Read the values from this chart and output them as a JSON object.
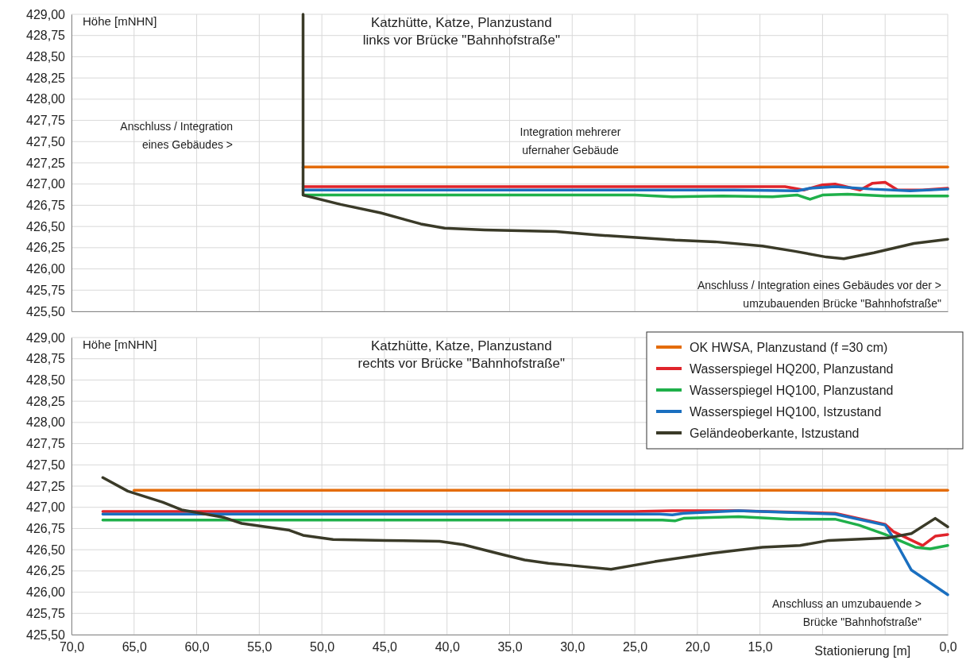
{
  "chart_data": [
    {
      "type": "line",
      "title": "Katzhütte,  Katze, Planzustand",
      "subtitle": "links vor Brücke \"Bahnhofstraße\"",
      "ylabel": "Höhe [mNHN]",
      "xlim": [
        70,
        0
      ],
      "ylim": [
        425.5,
        429
      ],
      "grid": true,
      "legend": false,
      "tick_labels": "y",
      "xticks": [
        {
          "value": 70,
          "label": null
        },
        {
          "value": 65,
          "label": null
        },
        {
          "value": 60,
          "label": null
        },
        {
          "value": 55,
          "label": null
        },
        {
          "value": 50,
          "label": null
        },
        {
          "value": 45,
          "label": null
        },
        {
          "value": 40,
          "label": null
        },
        {
          "value": 35,
          "label": null
        },
        {
          "value": 30,
          "label": null
        },
        {
          "value": 25,
          "label": null
        },
        {
          "value": 20,
          "label": null
        },
        {
          "value": 15,
          "label": null
        },
        {
          "value": 10,
          "label": null
        },
        {
          "value": 5,
          "label": null
        },
        {
          "value": 0,
          "label": null
        }
      ],
      "yticks": [
        {
          "value": 425.5,
          "label": "425,50"
        },
        {
          "value": 425.75,
          "label": "425,75"
        },
        {
          "value": 426,
          "label": "426,00"
        },
        {
          "value": 426.25,
          "label": "426,25"
        },
        {
          "value": 426.5,
          "label": "426,50"
        },
        {
          "value": 426.75,
          "label": "426,75"
        },
        {
          "value": 427,
          "label": "427,00"
        },
        {
          "value": 427.25,
          "label": "427,25"
        },
        {
          "value": 427.5,
          "label": "427,50"
        },
        {
          "value": 427.75,
          "label": "427,75"
        },
        {
          "value": 428,
          "label": "428,00"
        },
        {
          "value": 428.25,
          "label": "428,25"
        },
        {
          "value": 428.5,
          "label": "428,50"
        },
        {
          "value": 428.75,
          "label": "428,75"
        },
        {
          "value": 429,
          "label": "429,00"
        }
      ],
      "series": [
        {
          "color": "#e46c0a",
          "x": [
            51.5,
            0
          ],
          "values": [
            427.2,
            427.2
          ]
        },
        {
          "color": "#e0242b",
          "x": [
            51.5,
            15,
            13,
            11.5,
            10,
            9,
            7,
            6,
            5,
            4,
            2,
            0
          ],
          "values": [
            426.97,
            426.97,
            426.97,
            426.93,
            426.99,
            427.0,
            426.93,
            427.01,
            427.02,
            426.93,
            426.93,
            426.95
          ]
        },
        {
          "color": "#1fb04a",
          "x": [
            51.5,
            25,
            22,
            18,
            14,
            12,
            11,
            10,
            8,
            5,
            0
          ],
          "values": [
            426.87,
            426.87,
            426.85,
            426.86,
            426.85,
            426.87,
            426.82,
            426.87,
            426.88,
            426.86,
            426.86
          ]
        },
        {
          "color": "#1a6fc0",
          "x": [
            51.5,
            20,
            17,
            12,
            11,
            9,
            6,
            3,
            0
          ],
          "values": [
            426.93,
            426.93,
            426.93,
            426.92,
            426.95,
            426.97,
            426.94,
            426.92,
            426.94
          ]
        },
        {
          "color": "#3a3a28",
          "x": [
            51.5,
            51.5,
            48.5,
            45.3,
            42.1,
            40.2,
            37.0,
            31.3,
            28.1,
            24.9,
            21.8,
            18.6,
            14.8,
            12.3,
            9.7,
            8.3,
            5.9,
            2.7,
            0
          ],
          "values": [
            429,
            426.87,
            426.76,
            426.66,
            426.53,
            426.48,
            426.46,
            426.44,
            426.4,
            426.37,
            426.34,
            426.32,
            426.27,
            426.21,
            426.14,
            426.12,
            426.19,
            426.3,
            426.35
          ]
        }
      ],
      "annotations": [
        "Anschluss / Integration\neines Gebäudes >",
        "Integration  mehrerer\nufernaher  Gebäude",
        "Anschluss / Integration  eines Gebäudes vor der >\numzubauenden  Brücke \"Bahnhofstraße\""
      ]
    },
    {
      "type": "line",
      "title": "Katzhütte,  Katze, Planzustand",
      "subtitle": "rechts vor Brücke \"Bahnhofstraße\"",
      "ylabel": "Höhe [mNHN]",
      "xlabel": "Stationierung [m]",
      "xlim": [
        70,
        0
      ],
      "ylim": [
        425.5,
        429
      ],
      "grid": true,
      "legend": "top right",
      "xticks": [
        {
          "value": 70,
          "label": "70,0"
        },
        {
          "value": 65,
          "label": "65,0"
        },
        {
          "value": 60,
          "label": "60,0"
        },
        {
          "value": 55,
          "label": "55,0"
        },
        {
          "value": 50,
          "label": "50,0"
        },
        {
          "value": 45,
          "label": "45,0"
        },
        {
          "value": 40,
          "label": "40,0"
        },
        {
          "value": 35,
          "label": "35,0"
        },
        {
          "value": 30,
          "label": "30,0"
        },
        {
          "value": 25,
          "label": "25,0"
        },
        {
          "value": 20,
          "label": "20,0"
        },
        {
          "value": 15,
          "label": "15,0"
        },
        {
          "value": 10,
          "label": null
        },
        {
          "value": 5,
          "label": null
        },
        {
          "value": 0,
          "label": "0,0"
        }
      ],
      "yticks": [
        {
          "value": 425.5,
          "label": "425,50"
        },
        {
          "value": 425.75,
          "label": "425,75"
        },
        {
          "value": 426,
          "label": "426,00"
        },
        {
          "value": 426.25,
          "label": "426,25"
        },
        {
          "value": 426.5,
          "label": "426,50"
        },
        {
          "value": 426.75,
          "label": "426,75"
        },
        {
          "value": 427,
          "label": "427,00"
        },
        {
          "value": 427.25,
          "label": "427,25"
        },
        {
          "value": 427.5,
          "label": "427,50"
        },
        {
          "value": 427.75,
          "label": "427,75"
        },
        {
          "value": 428,
          "label": "428,00"
        },
        {
          "value": 428.25,
          "label": "428,25"
        },
        {
          "value": 428.5,
          "label": "428,50"
        },
        {
          "value": 428.75,
          "label": "428,75"
        },
        {
          "value": 429,
          "label": "429,00"
        }
      ],
      "series": [
        {
          "name": "OK HWSA, Planzustand (f =30 cm)",
          "color": "#e46c0a",
          "x": [
            65,
            0
          ],
          "values": [
            427.2,
            427.2
          ]
        },
        {
          "name": "Wasserspiegel HQ200, Planzustand",
          "color": "#e0242b",
          "x": [
            67.5,
            25,
            22,
            17,
            9,
            5,
            4.3,
            2,
            1,
            0
          ],
          "values": [
            426.95,
            426.95,
            426.96,
            426.96,
            426.93,
            426.8,
            426.71,
            426.55,
            426.66,
            426.68
          ]
        },
        {
          "name": "Wasserspiegel HQ100, Planzustand",
          "color": "#1fb04a",
          "x": [
            67.5,
            22.8,
            21.8,
            21.1,
            16.7,
            12.7,
            9,
            7.1,
            5,
            2.6,
            1.4,
            0
          ],
          "values": [
            426.85,
            426.85,
            426.84,
            426.87,
            426.89,
            426.86,
            426.86,
            426.79,
            426.68,
            426.53,
            426.51,
            426.55
          ]
        },
        {
          "name": "Wasserspiegel HQ100, Istzustand",
          "color": "#1a6fc0",
          "x": [
            67.5,
            23,
            22,
            21.1,
            16.7,
            9,
            5,
            4.3,
            2.9,
            0
          ],
          "values": [
            426.92,
            426.92,
            426.91,
            426.93,
            426.96,
            426.92,
            426.79,
            426.63,
            426.26,
            425.97
          ]
        },
        {
          "name": "Geländeoberkante, Istzustand",
          "color": "#3a3a28",
          "x": [
            67.5,
            65.5,
            62.7,
            61.2,
            57.8,
            56.4,
            52.6,
            51.5,
            49.1,
            44.9,
            40.6,
            38.7,
            35.5,
            33.8,
            31.9,
            30.4,
            26.9,
            23.4,
            18.8,
            14.8,
            11.8,
            9.5,
            4.8,
            2.9,
            1,
            0
          ],
          "values": [
            427.35,
            427.19,
            427.06,
            426.97,
            426.88,
            426.81,
            426.73,
            426.67,
            426.62,
            426.61,
            426.6,
            426.56,
            426.44,
            426.38,
            426.34,
            426.32,
            426.27,
            426.36,
            426.46,
            426.53,
            426.55,
            426.61,
            426.64,
            426.69,
            426.87,
            426.77
          ]
        }
      ],
      "annotations": [
        "Anschluss an umzubauende  >\nBrücke \"Bahnhofstraße\""
      ]
    }
  ]
}
